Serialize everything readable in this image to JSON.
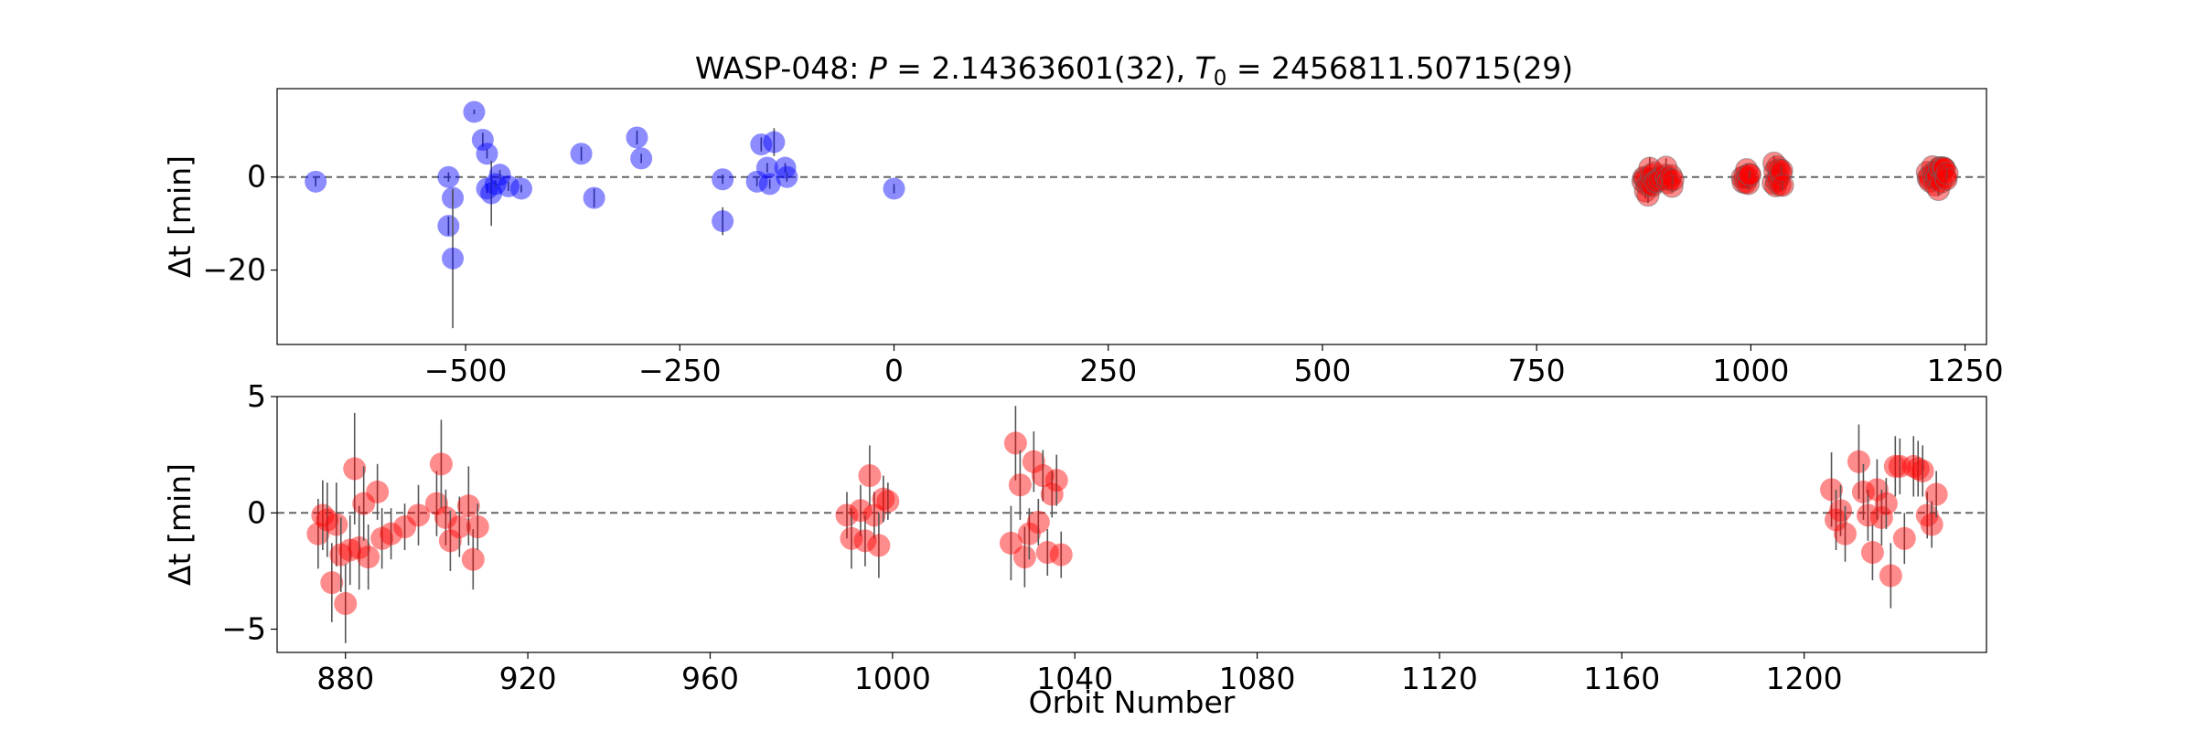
{
  "chart_data": [
    {
      "type": "scatter",
      "title": "WASP-048: P = 2.14363601(32), T0 = 2456811.50715(29)",
      "title_parts": {
        "prefix": "WASP-048: ",
        "p_symbol": "P",
        "p_value": " = 2.14363601(32), ",
        "t_symbol": "T",
        "t_subscript": "0",
        "t_value": " = 2456811.50715(29)"
      },
      "ylabel": "Δt [min]",
      "xlabel": "",
      "xlim": [
        -720,
        1275
      ],
      "ylim": [
        -36,
        19
      ],
      "xticks": [
        -500,
        -250,
        0,
        250,
        500,
        750,
        1000,
        1250
      ],
      "yticks": [
        0,
        -20
      ],
      "reference_line_y": 0,
      "series": [
        {
          "color": "#0000ff",
          "points": [
            {
              "x": -675,
              "y": -1.0,
              "err": 1.0
            },
            {
              "x": -490,
              "y": 14.0,
              "err": 0.5
            },
            {
              "x": -480,
              "y": 8.0,
              "err": 1.5
            },
            {
              "x": -475,
              "y": 5.0,
              "err": 1.0
            },
            {
              "x": -520,
              "y": 0.0,
              "err": 1.0
            },
            {
              "x": -520,
              "y": -10.5,
              "err": 2.0
            },
            {
              "x": -515,
              "y": -4.5,
              "err": 1.5
            },
            {
              "x": -515,
              "y": -17.5,
              "err": 15.0
            },
            {
              "x": -475,
              "y": -2.5,
              "err": 1.0
            },
            {
              "x": -470,
              "y": -3.5,
              "err": 7.0
            },
            {
              "x": -465,
              "y": -1.5,
              "err": 0.8
            },
            {
              "x": -460,
              "y": 0.5,
              "err": 1.0
            },
            {
              "x": -450,
              "y": -2.0,
              "err": 1.0
            },
            {
              "x": -435,
              "y": -2.5,
              "err": 0.8
            },
            {
              "x": -365,
              "y": 5.0,
              "err": 1.5
            },
            {
              "x": -350,
              "y": -4.5,
              "err": 2.0
            },
            {
              "x": -300,
              "y": 8.5,
              "err": 1.5
            },
            {
              "x": -295,
              "y": 4.0,
              "err": 1.0
            },
            {
              "x": -200,
              "y": -0.5,
              "err": 1.0
            },
            {
              "x": -200,
              "y": -9.5,
              "err": 3.0
            },
            {
              "x": -160,
              "y": -1.0,
              "err": 1.0
            },
            {
              "x": -155,
              "y": 7.0,
              "err": 1.5
            },
            {
              "x": -148,
              "y": 2.0,
              "err": 1.0
            },
            {
              "x": -145,
              "y": -1.5,
              "err": 1.0
            },
            {
              "x": -140,
              "y": 7.5,
              "err": 3.0
            },
            {
              "x": -127,
              "y": 2.0,
              "err": 1.0
            },
            {
              "x": -125,
              "y": 0.0,
              "err": 1.0
            },
            {
              "x": 0,
              "y": -2.5,
              "err": 1.0
            }
          ]
        },
        {
          "color": "#ff0000",
          "points_ref": "lower_panel"
        }
      ]
    },
    {
      "type": "scatter",
      "title": "",
      "ylabel": "Δt [min]",
      "xlabel": "Orbit Number",
      "xlim": [
        865,
        1240
      ],
      "ylim": [
        -6,
        5
      ],
      "xticks": [
        880,
        920,
        960,
        1000,
        1040,
        1080,
        1120,
        1160,
        1200
      ],
      "yticks": [
        5,
        0,
        -5
      ],
      "reference_line_y": 0,
      "series": [
        {
          "color": "#ff0000",
          "points": [
            {
              "x": 874,
              "y": -0.9,
              "err": 1.5
            },
            {
              "x": 875,
              "y": -0.1,
              "err": 1.5
            },
            {
              "x": 876,
              "y": -0.3,
              "err": 1.6
            },
            {
              "x": 877,
              "y": -3.0,
              "err": 1.7
            },
            {
              "x": 878,
              "y": -0.5,
              "err": 1.8
            },
            {
              "x": 879,
              "y": -1.8,
              "err": 1.6
            },
            {
              "x": 880,
              "y": -3.9,
              "err": 1.7
            },
            {
              "x": 881,
              "y": -1.6,
              "err": 1.5
            },
            {
              "x": 882,
              "y": 1.9,
              "err": 2.4
            },
            {
              "x": 883,
              "y": -1.5,
              "err": 1.8
            },
            {
              "x": 884,
              "y": 0.4,
              "err": 1.6
            },
            {
              "x": 885,
              "y": -1.9,
              "err": 1.4
            },
            {
              "x": 887,
              "y": 0.9,
              "err": 1.2
            },
            {
              "x": 888,
              "y": -1.1,
              "err": 1.3
            },
            {
              "x": 890,
              "y": -0.9,
              "err": 1.1
            },
            {
              "x": 893,
              "y": -0.6,
              "err": 1.0
            },
            {
              "x": 896,
              "y": -0.1,
              "err": 1.3
            },
            {
              "x": 900,
              "y": 0.4,
              "err": 1.4
            },
            {
              "x": 901,
              "y": 2.1,
              "err": 1.9
            },
            {
              "x": 902,
              "y": -0.2,
              "err": 1.2
            },
            {
              "x": 903,
              "y": -1.2,
              "err": 1.3
            },
            {
              "x": 905,
              "y": -0.6,
              "err": 1.3
            },
            {
              "x": 907,
              "y": 0.3,
              "err": 1.7
            },
            {
              "x": 908,
              "y": -2.0,
              "err": 1.3
            },
            {
              "x": 909,
              "y": -0.6,
              "err": 1.0
            },
            {
              "x": 990,
              "y": -0.1,
              "err": 1.0
            },
            {
              "x": 991,
              "y": -1.1,
              "err": 1.3
            },
            {
              "x": 993,
              "y": 0.1,
              "err": 1.1
            },
            {
              "x": 994,
              "y": -1.2,
              "err": 1.1
            },
            {
              "x": 995,
              "y": 1.6,
              "err": 1.3
            },
            {
              "x": 996,
              "y": -0.1,
              "err": 1.0
            },
            {
              "x": 997,
              "y": -1.4,
              "err": 1.4
            },
            {
              "x": 998,
              "y": 0.6,
              "err": 1.0
            },
            {
              "x": 999,
              "y": 0.5,
              "err": 0.8
            },
            {
              "x": 1026,
              "y": -1.3,
              "err": 1.6
            },
            {
              "x": 1027,
              "y": 3.0,
              "err": 1.6
            },
            {
              "x": 1028,
              "y": 1.2,
              "err": 1.5
            },
            {
              "x": 1029,
              "y": -1.9,
              "err": 1.3
            },
            {
              "x": 1030,
              "y": -0.9,
              "err": 1.1
            },
            {
              "x": 1031,
              "y": 2.2,
              "err": 1.3
            },
            {
              "x": 1032,
              "y": -0.4,
              "err": 1.0
            },
            {
              "x": 1033,
              "y": 1.6,
              "err": 1.1
            },
            {
              "x": 1034,
              "y": -1.7,
              "err": 1.0
            },
            {
              "x": 1035,
              "y": 0.8,
              "err": 1.0
            },
            {
              "x": 1036,
              "y": 1.4,
              "err": 1.1
            },
            {
              "x": 1037,
              "y": -1.8,
              "err": 1.0
            },
            {
              "x": 1206,
              "y": 1.0,
              "err": 1.6
            },
            {
              "x": 1207,
              "y": -0.3,
              "err": 1.3
            },
            {
              "x": 1208,
              "y": 0.1,
              "err": 1.1
            },
            {
              "x": 1209,
              "y": -0.9,
              "err": 1.2
            },
            {
              "x": 1212,
              "y": 2.2,
              "err": 1.6
            },
            {
              "x": 1213,
              "y": 0.9,
              "err": 1.2
            },
            {
              "x": 1214,
              "y": -0.1,
              "err": 1.1
            },
            {
              "x": 1215,
              "y": -1.7,
              "err": 1.2
            },
            {
              "x": 1216,
              "y": 1.0,
              "err": 1.3
            },
            {
              "x": 1217,
              "y": -0.2,
              "err": 1.2
            },
            {
              "x": 1218,
              "y": 0.4,
              "err": 1.1
            },
            {
              "x": 1219,
              "y": -2.7,
              "err": 1.4
            },
            {
              "x": 1220,
              "y": 2.0,
              "err": 1.3
            },
            {
              "x": 1221,
              "y": 2.0,
              "err": 1.2
            },
            {
              "x": 1222,
              "y": -1.1,
              "err": 1.1
            },
            {
              "x": 1224,
              "y": 2.0,
              "err": 1.3
            },
            {
              "x": 1225,
              "y": 1.9,
              "err": 1.2
            },
            {
              "x": 1226,
              "y": 1.8,
              "err": 1.1
            },
            {
              "x": 1227,
              "y": -0.1,
              "err": 1.0
            },
            {
              "x": 1228,
              "y": -0.5,
              "err": 1.0
            },
            {
              "x": 1229,
              "y": 0.8,
              "err": 1.0
            }
          ]
        }
      ]
    }
  ]
}
